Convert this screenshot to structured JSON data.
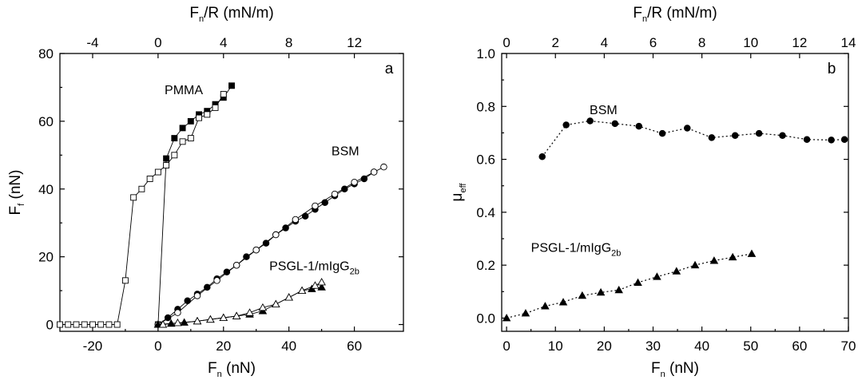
{
  "chart_data": [
    {
      "type": "scatter",
      "panel_label": "a",
      "xlabel": "F",
      "xlabel_sub": "n",
      "xlabel_unit": " (nN)",
      "ylabel": "F",
      "ylabel_sub": "f",
      "ylabel_unit": " (nN)",
      "top_xlabel": "F",
      "top_xlabel_sub": "n",
      "top_xlabel_unit": "/R (mN/m)",
      "xlim": [
        -30,
        75
      ],
      "ylim": [
        -2,
        80
      ],
      "xticks": [
        -20,
        0,
        20,
        40,
        60
      ],
      "yticks": [
        0,
        20,
        40,
        60,
        80
      ],
      "top_ticks": [
        -4,
        0,
        4,
        8,
        12
      ],
      "top_factor": 5.0,
      "series": [
        {
          "name": "PMMA filled",
          "marker": "square",
          "filled": true,
          "x": [
            0,
            2.5,
            5,
            7.5,
            10,
            12.5,
            15,
            17.5,
            20,
            22.5
          ],
          "y": [
            0,
            49,
            55,
            58,
            60,
            62,
            63,
            65,
            67,
            70.5
          ]
        },
        {
          "name": "PMMA open",
          "marker": "square",
          "filled": false,
          "x": [
            -30,
            -27.5,
            -25,
            -22.5,
            -20,
            -17.5,
            -15,
            -12.5,
            -10,
            -7.5,
            -5,
            -2.5,
            0,
            2.5,
            5,
            7.5,
            10,
            12.5,
            15,
            17.5,
            20
          ],
          "y": [
            0,
            0,
            0,
            0,
            0,
            0,
            0,
            0,
            13,
            37.5,
            40,
            43,
            45,
            47,
            50,
            54,
            55,
            61,
            62,
            64,
            68
          ]
        },
        {
          "name": "BSM filled",
          "marker": "circle",
          "filled": true,
          "x": [
            0,
            3,
            6,
            9,
            12,
            15,
            18,
            21,
            24,
            27,
            30,
            33,
            36,
            39,
            42,
            45,
            48,
            51,
            54,
            57,
            60,
            63,
            66
          ],
          "y": [
            0,
            2,
            4.5,
            7,
            9,
            11,
            13.5,
            15.5,
            17.5,
            20,
            22,
            24,
            26.5,
            28.5,
            30.5,
            32,
            34,
            36,
            38,
            40,
            41.5,
            43,
            45
          ]
        },
        {
          "name": "BSM open",
          "marker": "circle",
          "filled": false,
          "x": [
            0,
            6,
            12,
            18,
            24,
            30,
            36,
            42,
            48,
            54,
            60,
            66,
            69
          ],
          "y": [
            0,
            3.5,
            8.5,
            13,
            17.5,
            22,
            26.5,
            31,
            35,
            38.5,
            42,
            45,
            46.5
          ]
        },
        {
          "name": "PSGL filled",
          "marker": "triangle",
          "filled": true,
          "x": [
            0,
            4,
            8,
            12,
            16,
            20,
            24,
            28,
            32,
            36,
            40,
            44,
            47,
            50
          ],
          "y": [
            0,
            0.3,
            0.6,
            1,
            1.5,
            2,
            2.5,
            3,
            4,
            6,
            8,
            10,
            10.5,
            11
          ]
        },
        {
          "name": "PSGL open",
          "marker": "triangle",
          "filled": false,
          "x": [
            1.5,
            6,
            12,
            16,
            20,
            24,
            28,
            32,
            36,
            40,
            44,
            48,
            50
          ],
          "y": [
            0,
            0.5,
            1,
            1.5,
            2,
            2.5,
            3.5,
            5,
            6,
            8,
            10,
            11.5,
            12.5
          ]
        }
      ],
      "annotations": [
        {
          "text": "PMMA",
          "x": 2,
          "y": 68,
          "sub": ""
        },
        {
          "text": "BSM",
          "x": 53,
          "y": 50,
          "sub": ""
        },
        {
          "text": "PSGL-1/mIgG",
          "x": 34,
          "y": 16,
          "sub": "2b"
        }
      ]
    },
    {
      "type": "scatter",
      "panel_label": "b",
      "xlabel": "F",
      "xlabel_sub": "n",
      "xlabel_unit": " (nN)",
      "ylabel": "μ",
      "ylabel_sub": "eff",
      "ylabel_unit": "",
      "top_xlabel": "F",
      "top_xlabel_sub": "n",
      "top_xlabel_unit": "/R (mN/m)",
      "xlim": [
        -1,
        70
      ],
      "ylim": [
        -0.05,
        1.0
      ],
      "xticks": [
        0,
        10,
        20,
        30,
        40,
        50,
        60,
        70
      ],
      "yticks": [
        0.0,
        0.2,
        0.4,
        0.6,
        0.8,
        1.0
      ],
      "top_ticks": [
        0,
        2,
        4,
        6,
        8,
        10,
        12,
        14
      ],
      "top_factor": 5.0,
      "series": [
        {
          "name": "BSM",
          "marker": "circle",
          "filled": true,
          "x": [
            7.3,
            12.2,
            17.1,
            22.2,
            27.1,
            31.9,
            37,
            42,
            46.8,
            51.7,
            56.5,
            61.5,
            66.5,
            69.2
          ],
          "y": [
            0.61,
            0.73,
            0.745,
            0.735,
            0.725,
            0.698,
            0.718,
            0.682,
            0.69,
            0.698,
            0.69,
            0.675,
            0.673,
            0.675
          ]
        },
        {
          "name": "PSGL-1/mIgG2b",
          "marker": "triangle",
          "filled": true,
          "x": [
            0,
            3.9,
            7.9,
            11.6,
            15.5,
            19.3,
            23,
            26.9,
            30.8,
            34.8,
            38.6,
            42.5,
            46.3,
            50.2
          ],
          "y": [
            0,
            0.018,
            0.045,
            0.06,
            0.085,
            0.097,
            0.106,
            0.134,
            0.156,
            0.177,
            0.2,
            0.217,
            0.23,
            0.243
          ]
        }
      ],
      "annotations": [
        {
          "text": "BSM",
          "x": 17,
          "y": 0.77,
          "sub": ""
        },
        {
          "text": "PSGL-1/mIgG",
          "x": 5,
          "y": 0.25,
          "sub": "2b"
        }
      ]
    }
  ]
}
